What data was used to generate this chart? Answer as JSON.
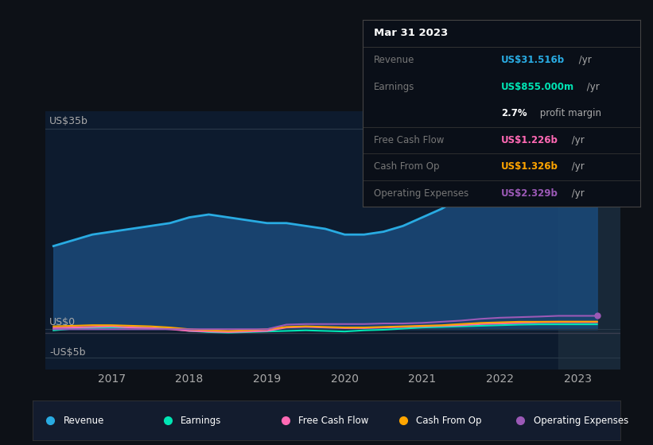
{
  "background_color": "#0d1117",
  "plot_bg_color": "#0d1b2e",
  "title": "Mar 31 2023",
  "years": [
    2016.25,
    2016.5,
    2016.75,
    2017.0,
    2017.25,
    2017.5,
    2017.75,
    2018.0,
    2018.25,
    2018.5,
    2018.75,
    2019.0,
    2019.25,
    2019.5,
    2019.75,
    2020.0,
    2020.25,
    2020.5,
    2020.75,
    2021.0,
    2021.25,
    2021.5,
    2021.75,
    2022.0,
    2022.25,
    2022.5,
    2022.75,
    2023.0,
    2023.25
  ],
  "revenue": [
    14.5,
    15.5,
    16.5,
    17.0,
    17.5,
    18.0,
    18.5,
    19.5,
    20.0,
    19.5,
    19.0,
    18.5,
    18.5,
    18.0,
    17.5,
    16.5,
    16.5,
    17.0,
    18.0,
    19.5,
    21.0,
    23.0,
    26.0,
    28.5,
    30.0,
    31.0,
    31.5,
    31.5,
    31.516
  ],
  "earnings": [
    -0.2,
    0.1,
    0.2,
    0.3,
    0.3,
    0.2,
    0.1,
    -0.3,
    -0.5,
    -0.6,
    -0.5,
    -0.4,
    -0.3,
    -0.2,
    -0.3,
    -0.4,
    -0.2,
    -0.1,
    0.1,
    0.3,
    0.4,
    0.5,
    0.6,
    0.7,
    0.8,
    0.85,
    0.855,
    0.855,
    0.855
  ],
  "free_cash_flow": [
    0.2,
    0.3,
    0.4,
    0.5,
    0.3,
    0.2,
    0.0,
    -0.3,
    -0.4,
    -0.5,
    -0.4,
    -0.3,
    0.3,
    0.4,
    0.3,
    0.2,
    0.2,
    0.3,
    0.4,
    0.5,
    0.6,
    0.7,
    0.9,
    1.0,
    1.1,
    1.2,
    1.226,
    1.226,
    1.226
  ],
  "cash_from_op": [
    0.5,
    0.6,
    0.7,
    0.7,
    0.6,
    0.5,
    0.3,
    0.0,
    -0.2,
    -0.3,
    -0.2,
    0.0,
    0.4,
    0.5,
    0.4,
    0.3,
    0.3,
    0.4,
    0.5,
    0.6,
    0.7,
    0.9,
    1.1,
    1.2,
    1.3,
    1.3,
    1.326,
    1.326,
    1.326
  ],
  "operating_expenses": [
    0.0,
    0.0,
    0.0,
    0.0,
    0.0,
    0.0,
    0.0,
    0.0,
    0.0,
    0.0,
    0.0,
    0.0,
    0.8,
    0.9,
    0.9,
    0.9,
    0.9,
    1.0,
    1.0,
    1.1,
    1.3,
    1.5,
    1.8,
    2.0,
    2.1,
    2.2,
    2.329,
    2.329,
    2.329
  ],
  "revenue_color": "#29abe2",
  "earnings_color": "#00e5b4",
  "free_cash_flow_color": "#ff69b4",
  "cash_from_op_color": "#ffa500",
  "operating_expenses_color": "#9b59b6",
  "ylabel_35b": "US$35b",
  "ylabel_0": "US$0",
  "ylabel_neg5b": "-US$5b",
  "xticks": [
    2017,
    2018,
    2019,
    2020,
    2021,
    2022,
    2023
  ],
  "ylim": [
    -7,
    38
  ],
  "highlight_x_start": 2022.75,
  "tooltip_bg": "#0a0f18",
  "tooltip_border": "#444444",
  "tooltip_title": "Mar 31 2023",
  "tooltip_rows": [
    {
      "label": "Revenue",
      "value": "US$31.516b",
      "suffix": " /yr",
      "value_color": "#29abe2",
      "bold_pct": false,
      "separator_before": true
    },
    {
      "label": "Earnings",
      "value": "US$855.000m",
      "suffix": " /yr",
      "value_color": "#00e5b4",
      "bold_pct": false,
      "separator_before": false
    },
    {
      "label": "",
      "value": "2.7%",
      "suffix": " profit margin",
      "value_color": "white",
      "bold_pct": true,
      "separator_before": false
    },
    {
      "label": "Free Cash Flow",
      "value": "US$1.226b",
      "suffix": " /yr",
      "value_color": "#ff69b4",
      "bold_pct": false,
      "separator_before": true
    },
    {
      "label": "Cash From Op",
      "value": "US$1.326b",
      "suffix": " /yr",
      "value_color": "#ffa500",
      "bold_pct": false,
      "separator_before": true
    },
    {
      "label": "Operating Expenses",
      "value": "US$2.329b",
      "suffix": " /yr",
      "value_color": "#9b59b6",
      "bold_pct": false,
      "separator_before": true
    }
  ],
  "legend_items": [
    "Revenue",
    "Earnings",
    "Free Cash Flow",
    "Cash From Op",
    "Operating Expenses"
  ],
  "legend_colors": [
    "#29abe2",
    "#00e5b4",
    "#ff69b4",
    "#ffa500",
    "#9b59b6"
  ]
}
